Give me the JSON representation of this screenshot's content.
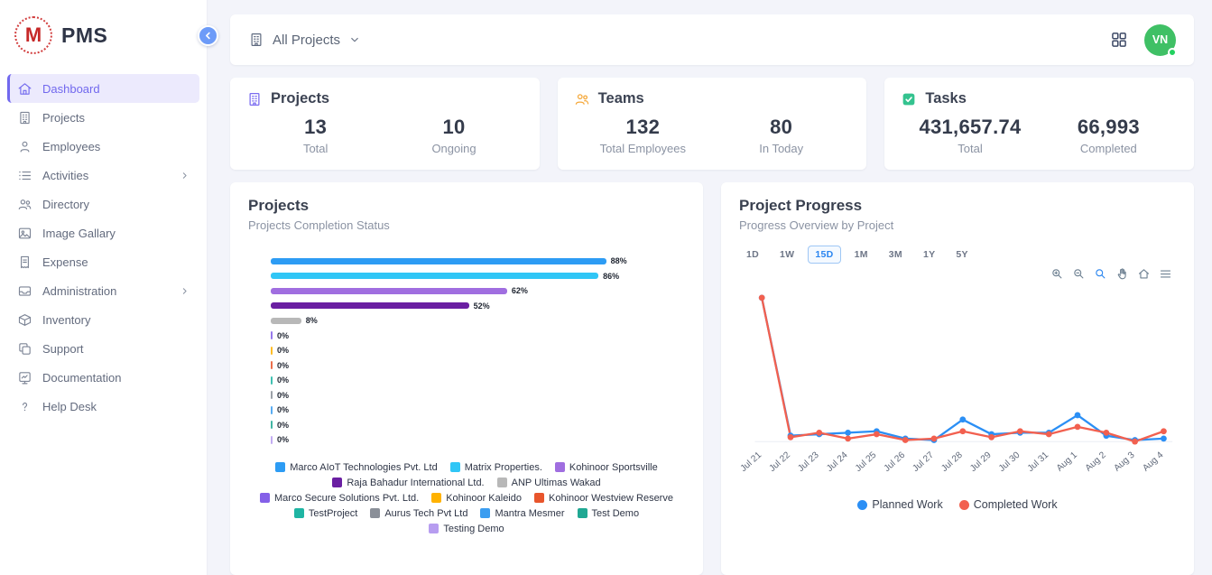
{
  "app": {
    "name": "PMS",
    "logo_letter": "M"
  },
  "sidebar": {
    "items": [
      {
        "label": "Dashboard",
        "icon": "home",
        "active": true,
        "chevron": false
      },
      {
        "label": "Projects",
        "icon": "building",
        "active": false,
        "chevron": false
      },
      {
        "label": "Employees",
        "icon": "person",
        "active": false,
        "chevron": false
      },
      {
        "label": "Activities",
        "icon": "list",
        "active": false,
        "chevron": true
      },
      {
        "label": "Directory",
        "icon": "people",
        "active": false,
        "chevron": false
      },
      {
        "label": "Image Gallary",
        "icon": "image",
        "active": false,
        "chevron": false
      },
      {
        "label": "Expense",
        "icon": "expense",
        "active": false,
        "chevron": false
      },
      {
        "label": "Administration",
        "icon": "administration",
        "active": false,
        "chevron": true
      },
      {
        "label": "Inventory",
        "icon": "inventory",
        "active": false,
        "chevron": false
      },
      {
        "label": "Support",
        "icon": "support",
        "active": false,
        "chevron": false
      },
      {
        "label": "Documentation",
        "icon": "documentation",
        "active": false,
        "chevron": false
      },
      {
        "label": "Help Desk",
        "icon": "help",
        "active": false,
        "chevron": false
      }
    ]
  },
  "topbar": {
    "project_selector_label": "All Projects",
    "avatar_initials": "VN"
  },
  "stats": [
    {
      "title": "Projects",
      "icon": "building",
      "icon_color": "#7b6cf0",
      "metrics": [
        {
          "value": "13",
          "label": "Total"
        },
        {
          "value": "10",
          "label": "Ongoing"
        }
      ]
    },
    {
      "title": "Teams",
      "icon": "people",
      "icon_color": "#f5a93c",
      "metrics": [
        {
          "value": "132",
          "label": "Total Employees"
        },
        {
          "value": "80",
          "label": "In Today"
        }
      ]
    },
    {
      "title": "Tasks",
      "icon": "check-square",
      "icon_color": "#34c38f",
      "metrics": [
        {
          "value": "431,657.74",
          "label": "Total"
        },
        {
          "value": "66,993",
          "label": "Completed"
        }
      ]
    }
  ],
  "projects_panel": {
    "title": "Projects",
    "subtitle": "Projects Completion Status"
  },
  "progress_panel": {
    "title": "Project Progress",
    "subtitle": "Progress Overview by Project",
    "ranges": [
      "1D",
      "1W",
      "15D",
      "1M",
      "3M",
      "1Y",
      "5Y"
    ],
    "selected_range": "15D",
    "toolbar_icons": [
      "zoom-in",
      "zoom-out",
      "selection-zoom",
      "pan",
      "reset-home",
      "menu"
    ],
    "toolbar_selected": "selection-zoom"
  },
  "chart_data": [
    {
      "type": "bar",
      "orientation": "horizontal",
      "title": "Projects Completion Status",
      "xlim": [
        0,
        100
      ],
      "categories": [
        "Marco AIoT Technologies Pvt. Ltd",
        "Matrix Properties.",
        "Kohinoor Sportsville",
        "Raja Bahadur International Ltd.",
        "ANP Ultimas Wakad",
        "Marco Secure Solutions Pvt. Ltd.",
        "Kohinoor Kaleido",
        "Kohinoor Westview Reserve",
        "TestProject",
        "Aurus Tech Pvt Ltd",
        "Mantra Mesmer",
        "Test Demo",
        "Testing Demo"
      ],
      "values": [
        88,
        86,
        62,
        52,
        8,
        0,
        0,
        0,
        0,
        0,
        0,
        0,
        0
      ],
      "value_labels": [
        "88%",
        "86%",
        "62%",
        "52%",
        "8%",
        "0%",
        "0%",
        "0%",
        "0%",
        "0%",
        "0%",
        "0%",
        "0%"
      ],
      "colors": [
        "#2d9cf4",
        "#30c6f6",
        "#a06ee0",
        "#6a1fa2",
        "#b8b8b8",
        "#8460e8",
        "#ffb200",
        "#e8552c",
        "#1fb5a3",
        "#8a8f98",
        "#3b9df0",
        "#20a893",
        "#b79df0"
      ]
    },
    {
      "type": "line",
      "title": "Progress Overview by Project",
      "x": [
        "Jul 21",
        "Jul 22",
        "Jul 23",
        "Jul 24",
        "Jul 25",
        "Jul 26",
        "Jul 27",
        "Jul 28",
        "Jul 29",
        "Jul 30",
        "Jul 31",
        "Aug 1",
        "Aug 2",
        "Aug 3",
        "Aug 4"
      ],
      "ylim": [
        0,
        100
      ],
      "grid": false,
      "legend_position": "bottom",
      "series": [
        {
          "name": "Planned Work",
          "color": "#2b8ff5",
          "values": [
            98,
            4,
            5,
            6,
            7,
            2,
            1,
            15,
            5,
            6,
            6,
            18,
            4,
            1,
            2
          ]
        },
        {
          "name": "Completed Work",
          "color": "#f2604f",
          "values": [
            98,
            3,
            6,
            2,
            5,
            1,
            2,
            7,
            3,
            7,
            5,
            10,
            6,
            0,
            7
          ]
        }
      ]
    }
  ]
}
